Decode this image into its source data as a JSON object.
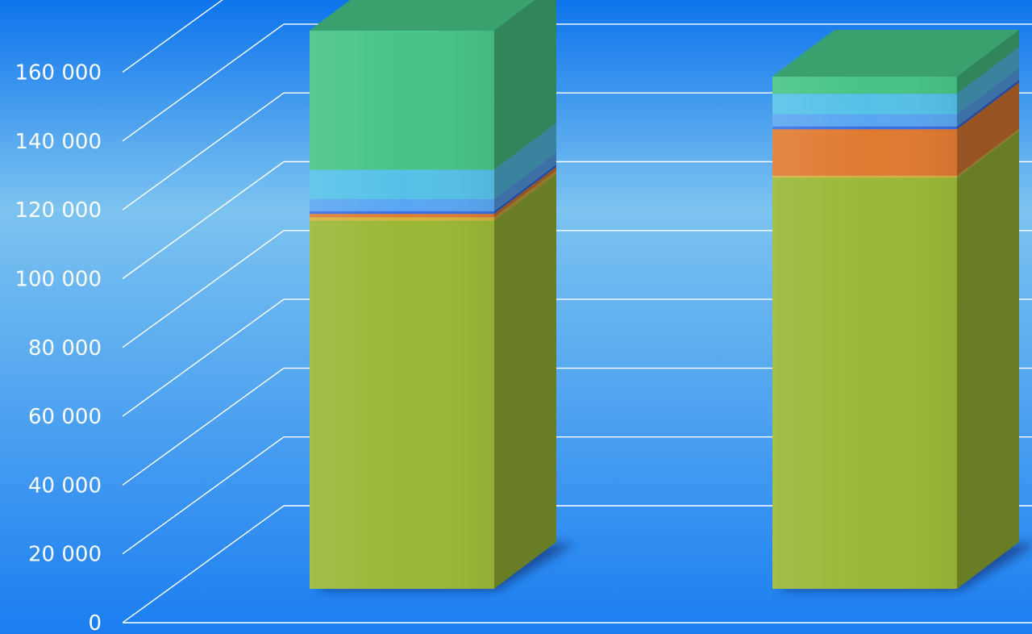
{
  "chart_data": {
    "type": "bar",
    "stacked": true,
    "three_d": true,
    "categories": [
      "",
      ""
    ],
    "series": [
      {
        "values": [
          107000,
          119500
        ],
        "color": "#9ab836"
      },
      {
        "values": [
          1000,
          600
        ],
        "color": "#d8b237"
      },
      {
        "values": [
          1000,
          13500
        ],
        "color": "#e07a32"
      },
      {
        "values": [
          800,
          800
        ],
        "color": "#3a6fe2"
      },
      {
        "values": [
          3500,
          3500
        ],
        "color": "#5aa6f2"
      },
      {
        "values": [
          8500,
          6000
        ],
        "color": "#56c1e8"
      },
      {
        "values": [
          40500,
          5000
        ],
        "color": "#47c486"
      }
    ],
    "ylim": [
      0,
      160000
    ],
    "yticks": [
      "0",
      "20 000",
      "40 000",
      "60 000",
      "80 000",
      "100 000",
      "120 000",
      "140 000",
      "160 000"
    ],
    "grid": true,
    "legend": "none",
    "background": {
      "top": "#0d74ec",
      "mid": "#7cc3f0",
      "bottom": "#1b7ef0"
    }
  }
}
